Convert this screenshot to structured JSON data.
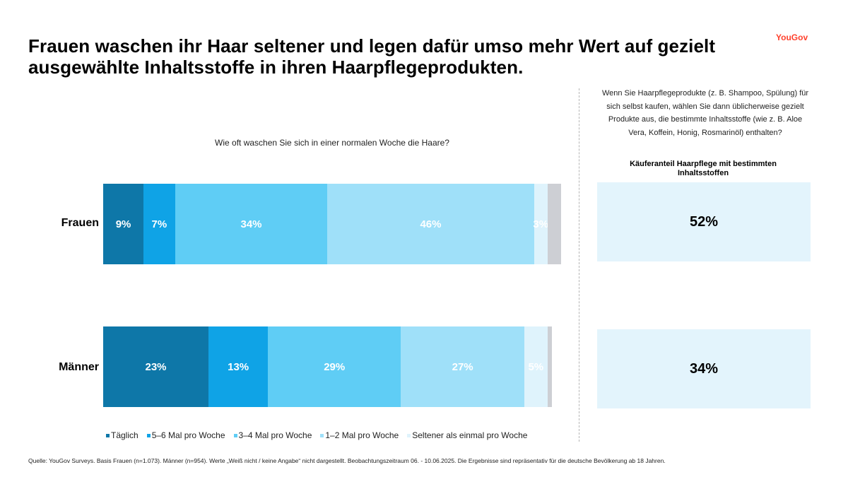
{
  "title": "Frauen waschen ihr Haar seltener und legen dafür umso mehr Wert auf gezielt ausgewählte Inhaltsstoffe in ihren Haarpflegeprodukten.",
  "logo": "YouGov",
  "question_left": "Wie oft waschen Sie sich in einer normalen Woche die Haare?",
  "question_right": "Wenn Sie Haarpflegeprodukte (z. B. Shampoo, Spülung) für sich selbst kaufen, wählen Sie dann üblicherweise gezielt Produkte aus, die bestimmte Inhaltsstoffe (wie z. B. Aloe Vera, Koffein, Honig, Rosmarinöl) enthalten?",
  "metric_title": "Käuferanteil Haarpflege mit bestimmten Inhaltsstoffen",
  "footer": "Quelle: YouGov Surveys. Basis Frauen (n=1.073). Männer (n=954). Werte „Weiß nicht / keine Angabe“ nicht dargestellt. Beobachtungszeitraum 06. - 10.06.2025. Die Ergebnisse sind repräsentativ für die deutsche Bevölkerung ab 18 Jahren.",
  "colors": {
    "segments": [
      "#0e77a8",
      "#0fa3e6",
      "#5fcdf5",
      "#9fe0f9",
      "#dff3fc"
    ],
    "remainder": "#cdcfd4",
    "metric_box": "#e3f4fc",
    "logo": "#ff412c"
  },
  "chart_data": [
    {
      "type": "bar",
      "orientation": "horizontal",
      "stacked": true,
      "title": "Wie oft waschen Sie sich in einer normalen Woche die Haare?",
      "categories": [
        "Frauen",
        "Männer"
      ],
      "series": [
        {
          "name": "Täglich",
          "values": [
            9,
            23
          ],
          "labels": [
            "9%",
            "23%"
          ]
        },
        {
          "name": "5–6 Mal pro Woche",
          "values": [
            7,
            13
          ],
          "labels": [
            "7%",
            "13%"
          ]
        },
        {
          "name": "3–4 Mal pro Woche",
          "values": [
            34,
            29
          ],
          "labels": [
            "34%",
            "29%"
          ]
        },
        {
          "name": "1–2 Mal pro Woche",
          "values": [
            46,
            27
          ],
          "labels": [
            "46%",
            "27%"
          ]
        },
        {
          "name": "Seltener als einmal pro Woche",
          "values": [
            3,
            5
          ],
          "labels": [
            "3%",
            "5%"
          ]
        }
      ],
      "remainder_unlabeled": [
        3,
        1
      ],
      "legend_position": "bottom",
      "xlim": [
        0,
        100
      ]
    },
    {
      "type": "table",
      "title": "Käuferanteil Haarpflege mit bestimmten Inhaltsstoffen",
      "categories": [
        "Frauen",
        "Männer"
      ],
      "values": [
        52,
        34
      ],
      "labels": [
        "52%",
        "34%"
      ]
    }
  ]
}
